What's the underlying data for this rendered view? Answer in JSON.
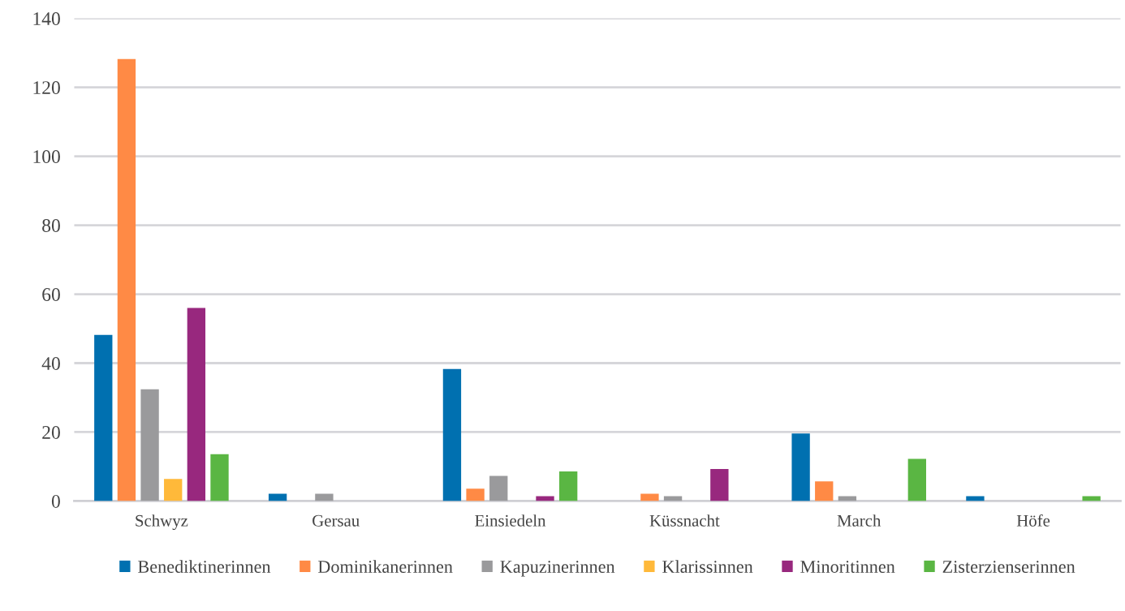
{
  "chart_data": {
    "type": "bar",
    "categories": [
      "Schwyz",
      "Gersau",
      "Einsiedeln",
      "Küssnacht",
      "March",
      "Höfe"
    ],
    "series": [
      {
        "name": "Benediktinerinnen",
        "color": "#0070b0",
        "values": [
          48.2,
          2.1,
          38.3,
          0,
          19.6,
          1.4
        ]
      },
      {
        "name": "Dominikanerinnen",
        "color": "#ff8a45",
        "values": [
          128.2,
          0,
          3.6,
          2.1,
          5.7,
          0
        ]
      },
      {
        "name": "Kapuzinerinnen",
        "color": "#9a9a9c",
        "values": [
          32.4,
          2.1,
          7.3,
          1.4,
          1.4,
          0
        ]
      },
      {
        "name": "Klarissinnen",
        "color": "#ffb93a",
        "values": [
          6.4,
          0,
          0,
          0,
          0,
          0
        ]
      },
      {
        "name": "Minoritinnen",
        "color": "#98287e",
        "values": [
          56,
          0,
          1.4,
          9.3,
          0,
          0
        ]
      },
      {
        "name": "Zisterzienserinnen",
        "color": "#5ab643",
        "values": [
          13.6,
          0,
          8.6,
          0,
          12.2,
          1.4
        ]
      }
    ],
    "ylim": [
      0,
      140
    ],
    "yticks": [
      0,
      20,
      40,
      60,
      80,
      100,
      120,
      140
    ],
    "grid": "y",
    "legend": "bottom"
  }
}
